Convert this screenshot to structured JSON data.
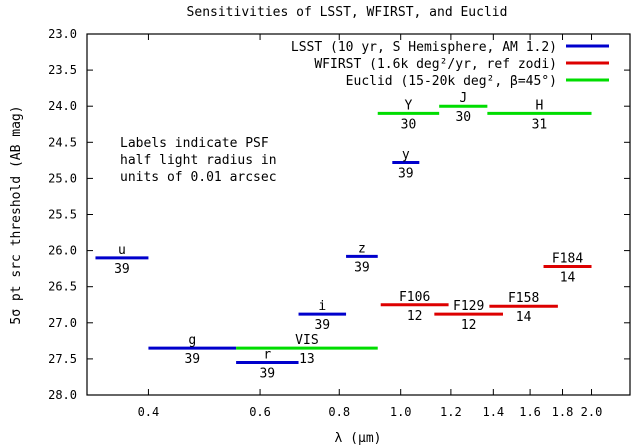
{
  "chart_data": {
    "type": "line",
    "title": "Sensitivities of LSST, WFIRST, and Euclid",
    "xlabel": "λ (μm)",
    "ylabel": "5σ pt src threshold (AB mag)",
    "x_scale": "log",
    "xlim": [
      0.32,
      2.3
    ],
    "ylim": [
      28.0,
      23.0
    ],
    "y_inverted": true,
    "x_ticks": [
      0.4,
      0.6,
      0.8,
      1.0,
      1.2,
      1.4,
      1.6,
      1.8,
      2.0
    ],
    "x_tick_labels": [
      "0.4",
      "0.6",
      "0.8",
      "1.0",
      "1.2",
      "1.4",
      "1.6",
      "1.8",
      "2.0"
    ],
    "y_ticks": [
      23.0,
      23.5,
      24.0,
      24.5,
      25.0,
      25.5,
      26.0,
      26.5,
      27.0,
      27.5,
      28.0
    ],
    "y_tick_labels": [
      "23.0",
      "23.5",
      "24.0",
      "24.5",
      "25.0",
      "25.5",
      "26.0",
      "26.5",
      "27.0",
      "27.5",
      "28.0"
    ],
    "grid": false,
    "legend_position": "top-right",
    "annotation": [
      "Labels indicate PSF",
      "half light radius in",
      "units of 0.01 arcsec"
    ],
    "series": [
      {
        "name": "LSST (10 yr, S Hemisphere, AM 1.2)",
        "color": "#0000cc",
        "bands": [
          {
            "band": "u",
            "psf": "39",
            "x": [
              0.33,
              0.4
            ],
            "y": 26.1
          },
          {
            "band": "g",
            "psf": "39",
            "x": [
              0.4,
              0.55
            ],
            "y": 27.35
          },
          {
            "band": "r",
            "psf": "39",
            "x": [
              0.55,
              0.69
            ],
            "y": 27.55
          },
          {
            "band": "i",
            "psf": "39",
            "x": [
              0.69,
              0.82
            ],
            "y": 26.88
          },
          {
            "band": "z",
            "psf": "39",
            "x": [
              0.82,
              0.92
            ],
            "y": 26.08
          },
          {
            "band": "y",
            "psf": "39",
            "x": [
              0.97,
              1.07
            ],
            "y": 24.78
          }
        ]
      },
      {
        "name": "WFIRST (1.6k deg²/yr, ref zodi)",
        "color": "#dd0000",
        "bands": [
          {
            "band": "F106",
            "psf": "12",
            "x": [
              0.93,
              1.19
            ],
            "y": 26.75
          },
          {
            "band": "F129",
            "psf": "12",
            "x": [
              1.13,
              1.45
            ],
            "y": 26.88
          },
          {
            "band": "F158",
            "psf": "14",
            "x": [
              1.38,
              1.77
            ],
            "y": 26.77
          },
          {
            "band": "F184",
            "psf": "14",
            "x": [
              1.68,
              2.0
            ],
            "y": 26.22
          }
        ]
      },
      {
        "name": "Euclid (15-20k deg², β=45°)",
        "color": "#00dd00",
        "bands": [
          {
            "band": "VIS",
            "psf": "13",
            "x": [
              0.55,
              0.92
            ],
            "y": 27.35
          },
          {
            "band": "Y",
            "psf": "30",
            "x": [
              0.92,
              1.15
            ],
            "y": 24.1
          },
          {
            "band": "J",
            "psf": "30",
            "x": [
              1.15,
              1.37
            ],
            "y": 24.0
          },
          {
            "band": "H",
            "psf": "31",
            "x": [
              1.37,
              2.0
            ],
            "y": 24.1
          }
        ]
      }
    ]
  }
}
